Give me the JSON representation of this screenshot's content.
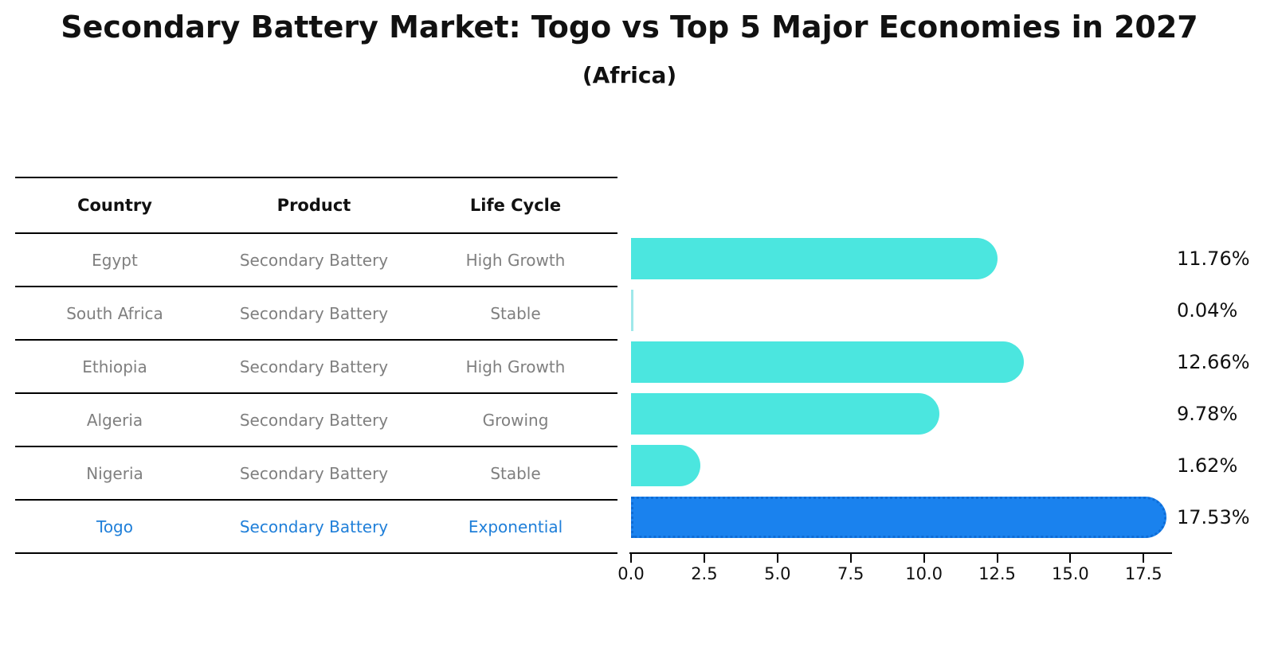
{
  "title": "Secondary Battery Market: Togo vs Top 5 Major Economies in 2027",
  "subtitle": "(Africa)",
  "table": {
    "headers": {
      "country": "Country",
      "product": "Product",
      "life_cycle": "Life Cycle"
    },
    "rows": [
      {
        "country": "Egypt",
        "product": "Secondary Battery",
        "life_cycle": "High Growth",
        "highlight": false
      },
      {
        "country": "South Africa",
        "product": "Secondary Battery",
        "life_cycle": "Stable",
        "highlight": false
      },
      {
        "country": "Ethiopia",
        "product": "Secondary Battery",
        "life_cycle": "High Growth",
        "highlight": false
      },
      {
        "country": "Algeria",
        "product": "Secondary Battery",
        "life_cycle": "Growing",
        "highlight": false
      },
      {
        "country": "Nigeria",
        "product": "Secondary Battery",
        "life_cycle": "Stable",
        "highlight": false
      },
      {
        "country": "Togo",
        "product": "Secondary Battery",
        "life_cycle": "Exponential",
        "highlight": true
      }
    ]
  },
  "chart_data": {
    "type": "bar",
    "orientation": "horizontal",
    "title": "Secondary Battery Market: Togo vs Top 5 Major Economies in 2027 (Africa)",
    "categories": [
      "Egypt",
      "South Africa",
      "Ethiopia",
      "Algeria",
      "Nigeria",
      "Togo"
    ],
    "values": [
      11.76,
      0.04,
      12.66,
      9.78,
      1.62,
      17.53
    ],
    "value_labels": [
      "11.76%",
      "0.04%",
      "12.66%",
      "9.78%",
      "1.62%",
      "17.53%"
    ],
    "unit": "%",
    "xlabel": "",
    "ylabel": "",
    "xlim": [
      0,
      18.4
    ],
    "x_ticks": [
      "0.0",
      "2.5",
      "5.0",
      "7.5",
      "10.0",
      "12.5",
      "15.0",
      "17.5"
    ],
    "x_tick_values": [
      0,
      2.5,
      5,
      7.5,
      10,
      12.5,
      15,
      17.5
    ],
    "grid": false,
    "legend": false,
    "highlight_category": "Togo",
    "colors": {
      "bar": "#4be6df",
      "highlight_bar": "#1a82ee",
      "highlight_bar_border": "#0e6cd6",
      "row_text": "#7f7f7f",
      "highlight_text": "#1f7fd9",
      "value_text": "#111111",
      "axis": "#000000"
    }
  }
}
